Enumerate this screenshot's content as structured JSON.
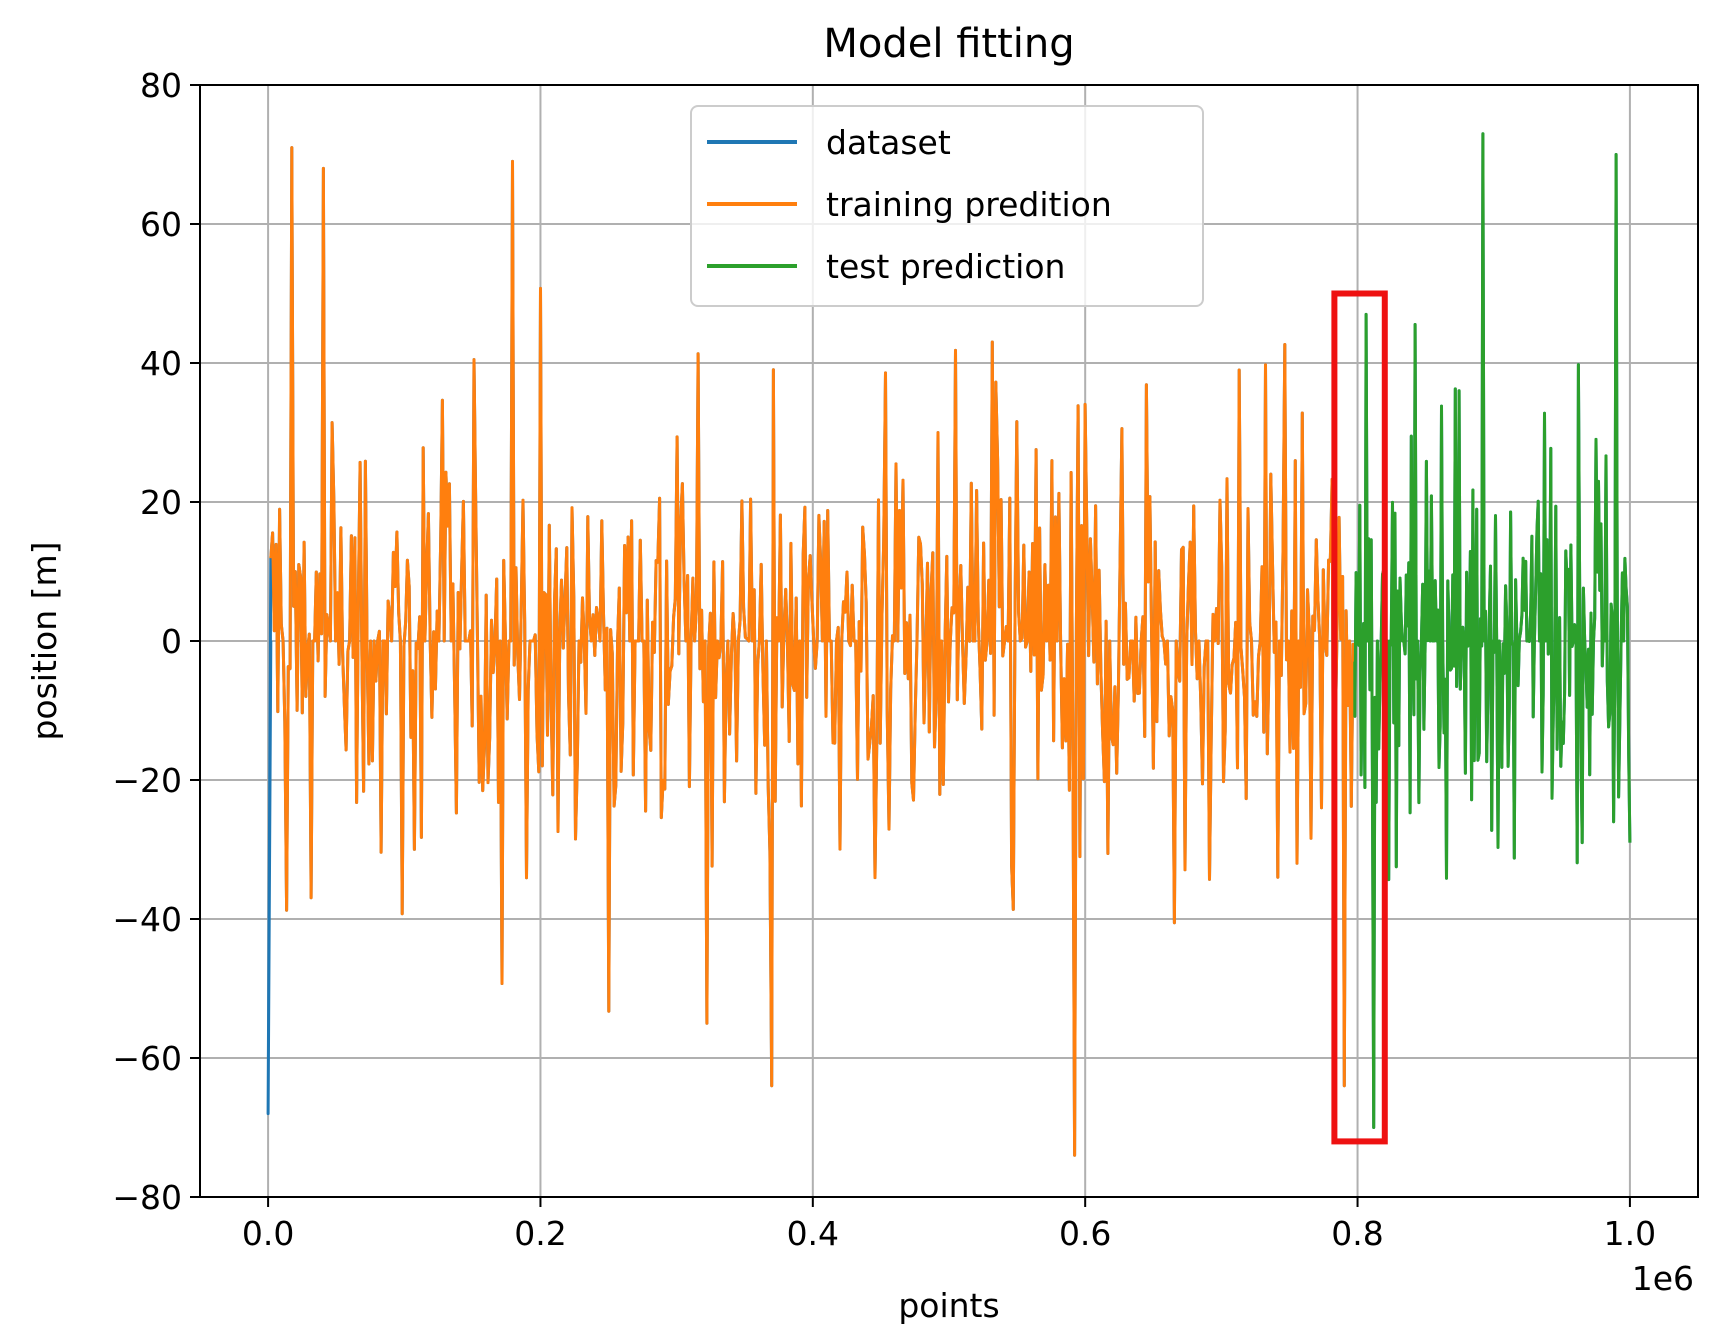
{
  "chart_data": {
    "type": "line",
    "title": "Model fitting",
    "xlabel": "points",
    "ylabel": "position [m]",
    "x_offset_label": "1e6",
    "xlim": [
      -50000,
      1050000
    ],
    "ylim": [
      -80,
      80
    ],
    "x_scale": 1000000,
    "xticks": [
      0,
      200000,
      400000,
      600000,
      800000,
      1000000
    ],
    "xtick_labels": [
      "0.0",
      "0.2",
      "0.4",
      "0.6",
      "0.8",
      "1.0"
    ],
    "yticks": [
      -80,
      -60,
      -40,
      -20,
      0,
      20,
      40,
      60,
      80
    ],
    "ytick_labels": [
      "−80",
      "−60",
      "−40",
      "−20",
      "0",
      "20",
      "40",
      "60",
      "80"
    ],
    "grid": true,
    "legend_position": "upper-center",
    "colors": {
      "dataset": "#1f77b4",
      "training": "#ff7f0e",
      "test": "#2ca02c",
      "highlight": "#ee1111",
      "grid": "#b0b0b0"
    },
    "series": [
      {
        "name": "dataset",
        "x_range": [
          0,
          1000000
        ],
        "highlights": [
          {
            "x": 0,
            "y": -68
          },
          {
            "x": 2000,
            "y": 0
          }
        ]
      },
      {
        "name": "training predition",
        "x_range": [
          2000,
          798000
        ],
        "amplitude_min": -74,
        "amplitude_max": 71,
        "notable_points": [
          {
            "x": 18000,
            "y": 71
          },
          {
            "x": 40000,
            "y": 68
          },
          {
            "x": 180000,
            "y": 69
          },
          {
            "x": 322000,
            "y": -55
          },
          {
            "x": 370000,
            "y": -64
          },
          {
            "x": 592000,
            "y": -74
          },
          {
            "x": 790000,
            "y": -64
          }
        ]
      },
      {
        "name": "test prediction",
        "x_range": [
          798000,
          1000000
        ],
        "amplitude_min": -70,
        "amplitude_max": 73,
        "notable_points": [
          {
            "x": 806000,
            "y": 47
          },
          {
            "x": 812000,
            "y": -70
          },
          {
            "x": 892000,
            "y": 73
          },
          {
            "x": 990000,
            "y": 70
          },
          {
            "x": 1000000,
            "y": -29
          }
        ]
      }
    ],
    "annotations": [
      {
        "type": "rectangle",
        "x0": 783000,
        "x1": 820000,
        "y0": -72,
        "y1": 50
      }
    ]
  }
}
